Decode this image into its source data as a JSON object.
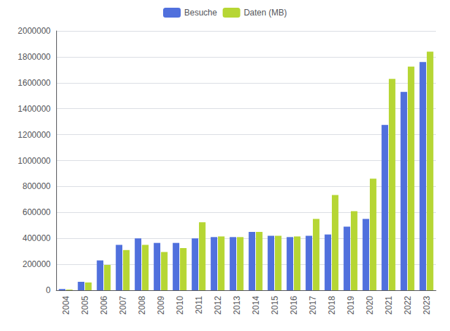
{
  "chart_data": {
    "type": "bar",
    "categories": [
      "2004",
      "2005",
      "2006",
      "2007",
      "2008",
      "2009",
      "2010",
      "2011",
      "2012",
      "2013",
      "2014",
      "2015",
      "2016",
      "2017",
      "2018",
      "2019",
      "2020",
      "2021",
      "2022",
      "2023"
    ],
    "series": [
      {
        "name": "Besuche",
        "values": [
          10000,
          65000,
          230000,
          350000,
          400000,
          365000,
          365000,
          400000,
          410000,
          410000,
          450000,
          420000,
          410000,
          420000,
          430000,
          490000,
          550000,
          1275000,
          1530000,
          1760000
        ]
      },
      {
        "name": "Daten (MB)",
        "values": [
          5000,
          60000,
          195000,
          310000,
          350000,
          295000,
          325000,
          525000,
          415000,
          410000,
          450000,
          420000,
          415000,
          550000,
          735000,
          610000,
          860000,
          1630000,
          1725000,
          1840000
        ]
      }
    ],
    "ylim": [
      0,
      2000000
    ],
    "yticks": [
      0,
      200000,
      400000,
      600000,
      800000,
      1000000,
      1200000,
      1400000,
      1600000,
      1800000,
      2000000
    ],
    "grid": true,
    "legend": "upper center"
  }
}
